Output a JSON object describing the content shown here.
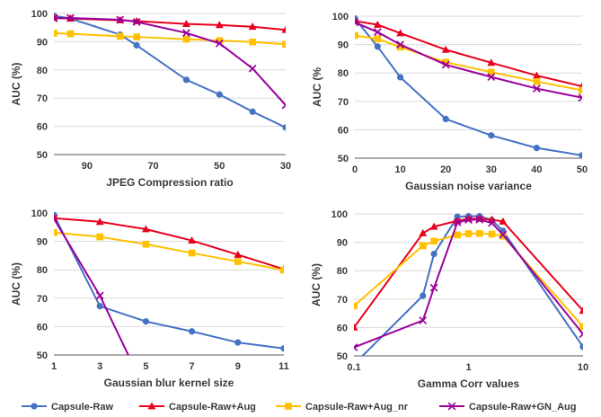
{
  "colors": {
    "capsule_raw": "#4472C4",
    "capsule_raw_aug": "#E8001C",
    "capsule_raw_aug_nr": "#FFC000",
    "capsule_raw_gn_aug": "#9B009B",
    "grid": "#d9d9d9",
    "axis": "#595959",
    "text": "#3a3a3a"
  },
  "legend": [
    {
      "label": "Capsule-Raw",
      "color": "#4472C4",
      "marker": "circle"
    },
    {
      "label": "Capsule-Raw+Aug",
      "color": "#E8001C",
      "marker": "triangle"
    },
    {
      "label": "Capsule-Raw+Aug_nr",
      "color": "#FFC000",
      "marker": "square"
    },
    {
      "label": "Capsule-Raw+GN_Aug",
      "color": "#9B009B",
      "marker": "cross"
    }
  ],
  "chart_data": [
    {
      "type": "line",
      "xlabel": "JPEG Compression ratio",
      "ylabel": "AUC (%)",
      "x_scale": "linear",
      "x_reversed": true,
      "xlim": [
        100,
        30
      ],
      "ylim": [
        50,
        100
      ],
      "x_ticks": [
        90,
        70,
        50,
        30
      ],
      "x_tick_labels": [
        "90",
        "70",
        "50",
        "30"
      ],
      "y_ticks": [
        50,
        60,
        70,
        80,
        90,
        100
      ],
      "y_tick_labels": [
        "50",
        "60",
        "70",
        "80",
        "90",
        "100"
      ],
      "grid": true,
      "x": [
        100,
        95,
        80,
        75,
        60,
        50,
        40,
        30
      ],
      "series": [
        {
          "name": "Capsule-Raw",
          "values": [
            99.2,
            98.2,
            92.5,
            88.7,
            76.5,
            71.3,
            65.2,
            59.6
          ]
        },
        {
          "name": "Capsule-Raw+Aug",
          "values": [
            98.4,
            98.2,
            97.6,
            97.3,
            96.3,
            95.9,
            95.3,
            94.2
          ]
        },
        {
          "name": "Capsule-Raw+Aug_nr",
          "values": [
            93.0,
            92.8,
            91.9,
            91.7,
            90.9,
            90.4,
            89.9,
            89.1
          ]
        },
        {
          "name": "Capsule-Raw+GN_Aug",
          "values": [
            98.3,
            98.4,
            97.8,
            97.0,
            93.1,
            89.4,
            80.5,
            67.5
          ]
        }
      ]
    },
    {
      "type": "line",
      "xlabel": "Gaussian noise variance",
      "ylabel": "AUC (%",
      "x_scale": "linear",
      "xlim": [
        0,
        50
      ],
      "ylim": [
        50,
        100
      ],
      "x_ticks": [
        0,
        10,
        20,
        30,
        40,
        50
      ],
      "x_tick_labels": [
        "0",
        "10",
        "20",
        "30",
        "40",
        "50"
      ],
      "y_ticks": [
        50,
        60,
        70,
        80,
        90,
        100
      ],
      "y_tick_labels": [
        "50",
        "60",
        "70",
        "80",
        "90",
        "100"
      ],
      "grid": true,
      "x": [
        0,
        5,
        10,
        20,
        30,
        40,
        50
      ],
      "series": [
        {
          "name": "Capsule-Raw",
          "values": [
            99.2,
            89.3,
            78.5,
            63.8,
            58.0,
            53.6,
            51.0
          ]
        },
        {
          "name": "Capsule-Raw+Aug",
          "values": [
            98.3,
            97.0,
            94.0,
            88.2,
            83.6,
            79.1,
            75.3
          ]
        },
        {
          "name": "Capsule-Raw+Aug_nr",
          "values": [
            93.2,
            92.0,
            89.1,
            83.8,
            80.3,
            77.0,
            73.9
          ]
        },
        {
          "name": "Capsule-Raw+GN_Aug",
          "values": [
            97.8,
            94.4,
            90.0,
            82.9,
            78.6,
            74.5,
            71.3
          ]
        }
      ]
    },
    {
      "type": "line",
      "xlabel": "Gaussian blur kernel size",
      "ylabel": "AUC (%)",
      "x_scale": "linear",
      "xlim": [
        1,
        11
      ],
      "ylim": [
        50,
        100
      ],
      "x_ticks": [
        1,
        3,
        5,
        7,
        9,
        11
      ],
      "x_tick_labels": [
        "1",
        "3",
        "5",
        "7",
        "9",
        "11"
      ],
      "y_ticks": [
        50,
        60,
        70,
        80,
        90,
        100
      ],
      "y_tick_labels": [
        "50",
        "60",
        "70",
        "80",
        "90",
        "100"
      ],
      "grid": true,
      "x": [
        1,
        3,
        5,
        7,
        9,
        11
      ],
      "series": [
        {
          "name": "Capsule-Raw",
          "values": [
            99.3,
            67.2,
            61.8,
            58.3,
            54.4,
            52.3
          ]
        },
        {
          "name": "Capsule-Raw+Aug",
          "values": [
            98.2,
            96.9,
            94.3,
            90.3,
            85.3,
            80.2
          ]
        },
        {
          "name": "Capsule-Raw+Aug_nr",
          "values": [
            93.1,
            91.6,
            89.0,
            85.9,
            82.9,
            79.9
          ]
        },
        {
          "name": "Capsule-Raw+GN_Aug",
          "values": [
            98.0,
            70.9,
            37.0,
            null,
            null,
            null
          ]
        }
      ]
    },
    {
      "type": "line",
      "xlabel": "Gamma Corr values",
      "ylabel": "AUC (%)",
      "x_scale": "log",
      "xlim": [
        0.1,
        10
      ],
      "ylim": [
        50,
        100
      ],
      "x_ticks": [
        0.1,
        1,
        10
      ],
      "x_tick_labels": [
        "0.1",
        "1",
        "10"
      ],
      "y_ticks": [
        50,
        60,
        70,
        80,
        90,
        100
      ],
      "y_tick_labels": [
        "50",
        "60",
        "70",
        "80",
        "90",
        "100"
      ],
      "grid": true,
      "x": [
        0.1,
        0.4,
        0.5,
        0.8,
        1.0,
        1.25,
        1.6,
        2.0,
        10
      ],
      "series": [
        {
          "name": "Capsule-Raw",
          "values": [
            47.0,
            71.2,
            85.9,
            99.0,
            99.2,
            99.2,
            97.8,
            94.0,
            53.2
          ]
        },
        {
          "name": "Capsule-Raw+Aug",
          "values": [
            60.0,
            93.2,
            95.5,
            97.6,
            98.3,
            98.3,
            98.0,
            97.3,
            65.9
          ]
        },
        {
          "name": "Capsule-Raw+Aug_nr",
          "values": [
            67.6,
            88.8,
            90.4,
            92.6,
            93.0,
            93.1,
            92.9,
            92.2,
            60.3
          ]
        },
        {
          "name": "Capsule-Raw+GN_Aug",
          "values": [
            53.0,
            62.5,
            74.0,
            97.0,
            97.9,
            98.0,
            96.8,
            92.7,
            57.7
          ]
        }
      ]
    }
  ]
}
